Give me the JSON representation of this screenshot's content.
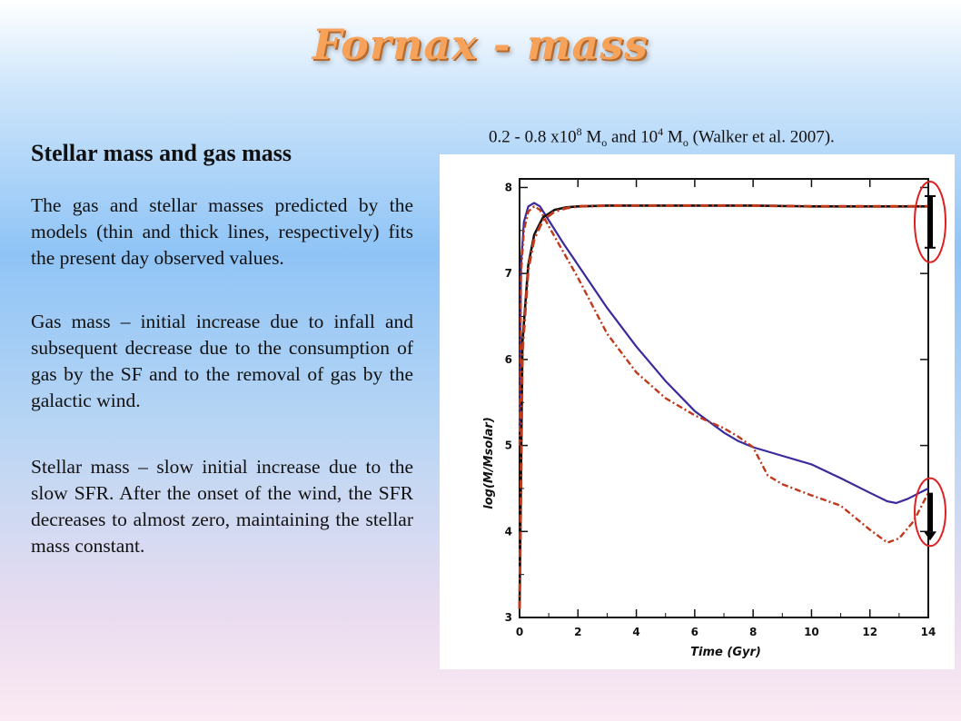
{
  "slide": {
    "title": "Fornax - mass",
    "subtitle": "Stellar mass and gas mass",
    "paragraphs": [
      "The gas and stellar masses predicted by the models (thin and thick lines, respectively) fits the present day observed values.",
      "Gas mass – initial increase due to infall and subsequent decrease due to the consumption of gas by the SF and to the removal of gas by the galactic wind.",
      "Stellar mass – slow initial increase due to the slow SFR. After the onset of the wind, the SFR decreases to almost zero, maintaining the stellar mass constant."
    ],
    "reference": {
      "part1": "0.2 - 0.8 x10",
      "exp1": "8",
      "part2": " M",
      "sub1": "o",
      "part3": " and 10",
      "exp2": "4",
      "part4": " M",
      "sub2": "o",
      "part5": " (Walker et al. 2007)."
    }
  },
  "colors": {
    "title": "#f6a25a",
    "blue_line": "#3a2a9c",
    "red_line": "#c0391b",
    "black_line": "#111111",
    "marker_ellipse": "#e02020"
  },
  "chart_data": {
    "type": "line",
    "title": "",
    "xlabel": "Time (Gyr)",
    "ylabel": "log(M/Msolar)",
    "xlim": [
      0,
      14
    ],
    "ylim": [
      3,
      8.1
    ],
    "xticks": [
      "0",
      "2",
      "4",
      "6",
      "8",
      "10",
      "12",
      "14"
    ],
    "yticks": [
      "3",
      "4",
      "5",
      "6",
      "7",
      "8"
    ],
    "grid": false,
    "series": [
      {
        "style": "thick black solid",
        "x": [
          0,
          0.1,
          0.3,
          0.5,
          0.8,
          1.2,
          1.6,
          2,
          3,
          4,
          6,
          8,
          10,
          12,
          13.5,
          14
        ],
        "y": [
          3.1,
          6.2,
          7.1,
          7.45,
          7.65,
          7.74,
          7.77,
          7.78,
          7.79,
          7.79,
          7.79,
          7.79,
          7.78,
          7.78,
          7.78,
          7.78
        ]
      },
      {
        "style": "thick red dash-dot",
        "x": [
          0,
          0.1,
          0.3,
          0.5,
          0.8,
          1.2,
          1.6,
          2,
          3,
          4,
          6,
          8,
          10,
          12,
          13.5,
          14
        ],
        "y": [
          3.1,
          6.1,
          7.05,
          7.4,
          7.62,
          7.72,
          7.76,
          7.78,
          7.79,
          7.79,
          7.79,
          7.79,
          7.78,
          7.78,
          7.78,
          7.78
        ]
      },
      {
        "style": "thin blue solid",
        "x": [
          0,
          0.05,
          0.15,
          0.3,
          0.5,
          0.7,
          1,
          1.5,
          2,
          3,
          4,
          5,
          6,
          7,
          7.5,
          8,
          9,
          10,
          11,
          12,
          12.6,
          12.9,
          13.3,
          13.7,
          14
        ],
        "y": [
          5.2,
          7.1,
          7.6,
          7.78,
          7.82,
          7.78,
          7.62,
          7.35,
          7.1,
          6.6,
          6.15,
          5.75,
          5.4,
          5.15,
          5.05,
          4.98,
          4.88,
          4.78,
          4.62,
          4.45,
          4.35,
          4.33,
          4.38,
          4.45,
          4.5
        ]
      },
      {
        "style": "thin red dash-dot",
        "x": [
          0,
          0.05,
          0.15,
          0.3,
          0.5,
          0.7,
          1,
          1.5,
          2,
          3,
          4,
          5,
          6,
          7,
          7.5,
          8,
          8.5,
          9,
          10,
          11,
          12,
          12.6,
          13,
          13.5,
          14
        ],
        "y": [
          5.0,
          7.0,
          7.5,
          7.72,
          7.78,
          7.74,
          7.55,
          7.25,
          6.95,
          6.3,
          5.85,
          5.55,
          5.35,
          5.2,
          5.1,
          4.98,
          4.65,
          4.55,
          4.42,
          4.3,
          4.02,
          3.87,
          3.92,
          4.12,
          4.45
        ]
      }
    ],
    "observed_markers": [
      {
        "label": "stellar mass range",
        "x": 14,
        "y_range": [
          7.3,
          7.9
        ]
      },
      {
        "label": "gas mass upper limit",
        "x": 14,
        "y_range": [
          4.0,
          4.45
        ]
      }
    ]
  }
}
